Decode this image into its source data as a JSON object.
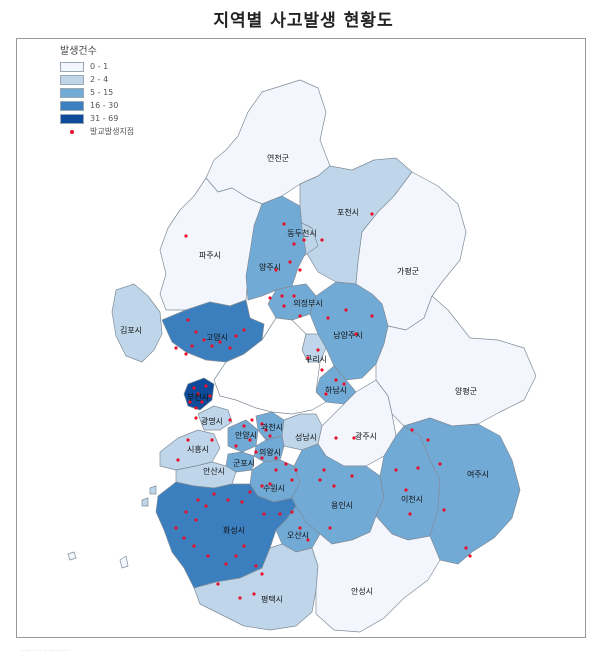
{
  "title": "지역별 사고발생 현황도",
  "legend": {
    "title": "발생건수",
    "classes": [
      {
        "label": "0 - 1",
        "color": "#f3f7fd"
      },
      {
        "label": "2 - 4",
        "color": "#bfd6ea"
      },
      {
        "label": "5 - 15",
        "color": "#72aad6"
      },
      {
        "label": "16 - 30",
        "color": "#3c7fbf"
      },
      {
        "label": "31 - 69",
        "color": "#0e4b9a"
      }
    ],
    "point_label": "발교발생지점",
    "point_color": "#e8102a"
  },
  "regions": {
    "yeoncheon": "연천군",
    "pocheon": "포천시",
    "dongducheon": "동두천시",
    "paju": "파주시",
    "yangju": "양주시",
    "gapyeong": "가평군",
    "uijeongbu": "의정부시",
    "gimpo": "김포시",
    "goyang": "고양시",
    "namyangju": "남양주시",
    "guri": "구리시",
    "hanam": "하남시",
    "yangpyeong": "양평군",
    "bucheon": "부천시",
    "gwangmyeong": "광명시",
    "gwacheon": "과천시",
    "anyang": "안양시",
    "seongnam": "성남시",
    "gwangju": "광주시",
    "siheung": "시흥시",
    "uiwang": "의왕시",
    "ansan": "안산시",
    "gunpo": "군포시",
    "suwon": "수원시",
    "yongin": "용인시",
    "icheon": "이천시",
    "yeoju": "여주시",
    "hwaseong": "화성시",
    "osan": "오산시",
    "pyeongtaek": "평택시",
    "anseong": "안성시"
  },
  "bottom_note": "· ··· · ·· ·· ··· · ··· ·"
}
